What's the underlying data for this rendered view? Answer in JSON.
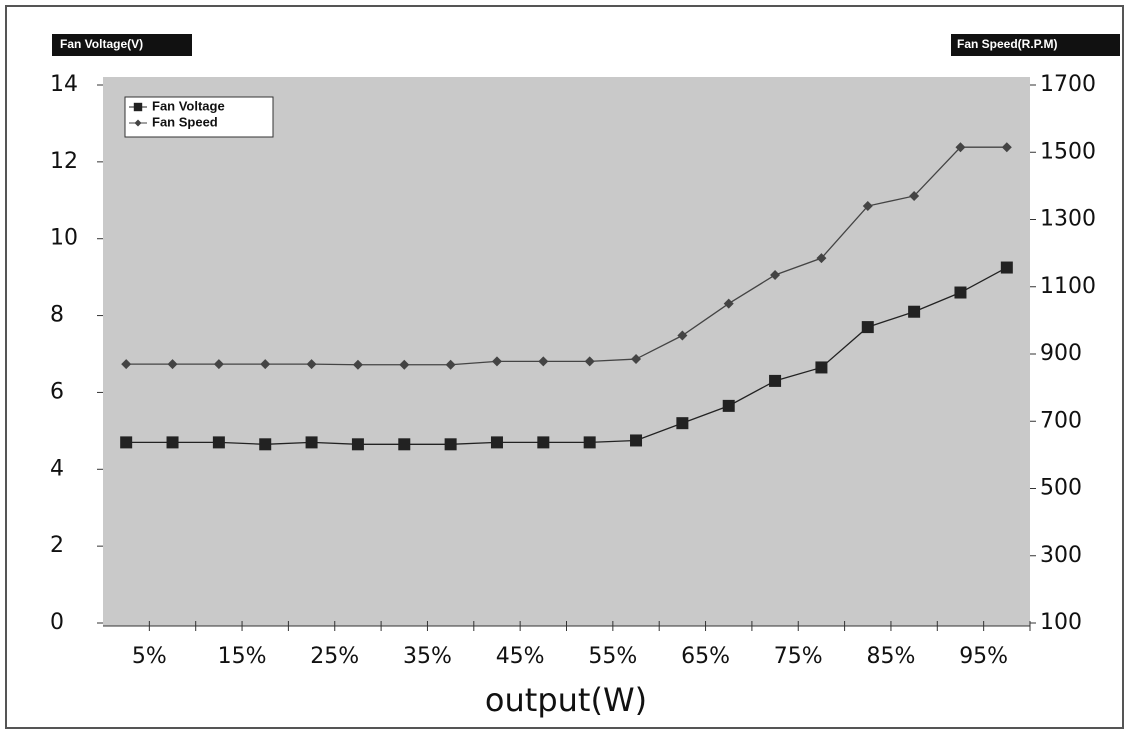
{
  "chart_data": {
    "type": "line",
    "y_label": "Fan Voltage(V)",
    "y2_label": "Fan Speed(R.P.M)",
    "x_label": "output(W)",
    "categories": [
      "5%",
      null,
      "15%",
      null,
      "25%",
      null,
      "35%",
      null,
      "45%",
      null,
      "55%",
      null,
      "65%",
      null,
      "75%",
      null,
      "85%",
      null,
      "95%",
      null
    ],
    "series": [
      {
        "name": "Fan Voltage",
        "color": "#222222",
        "marker": "square",
        "values": [
          4.7,
          4.7,
          4.7,
          4.65,
          4.7,
          4.65,
          4.65,
          4.65,
          4.7,
          4.7,
          4.7,
          4.75,
          5.2,
          5.65,
          6.3,
          6.65,
          7.7,
          8.1,
          8.6,
          9.25
        ]
      },
      {
        "name": "Fan Speed",
        "color": "#444444",
        "marker": "diamond",
        "axis": "y2",
        "values": [
          870,
          870,
          870,
          870,
          870,
          868,
          868,
          868,
          878,
          878,
          878,
          885,
          955,
          1050,
          1135,
          1185,
          1340,
          1370,
          1515,
          1515
        ]
      }
    ],
    "ylim": [
      0,
      14
    ],
    "yticks": [
      0,
      2,
      4,
      6,
      8,
      10,
      12,
      14
    ],
    "y2lim": [
      100,
      1700
    ],
    "y2ticks": [
      100,
      300,
      500,
      700,
      900,
      1100,
      1300,
      1500,
      1700
    ],
    "legend": "top-left"
  }
}
